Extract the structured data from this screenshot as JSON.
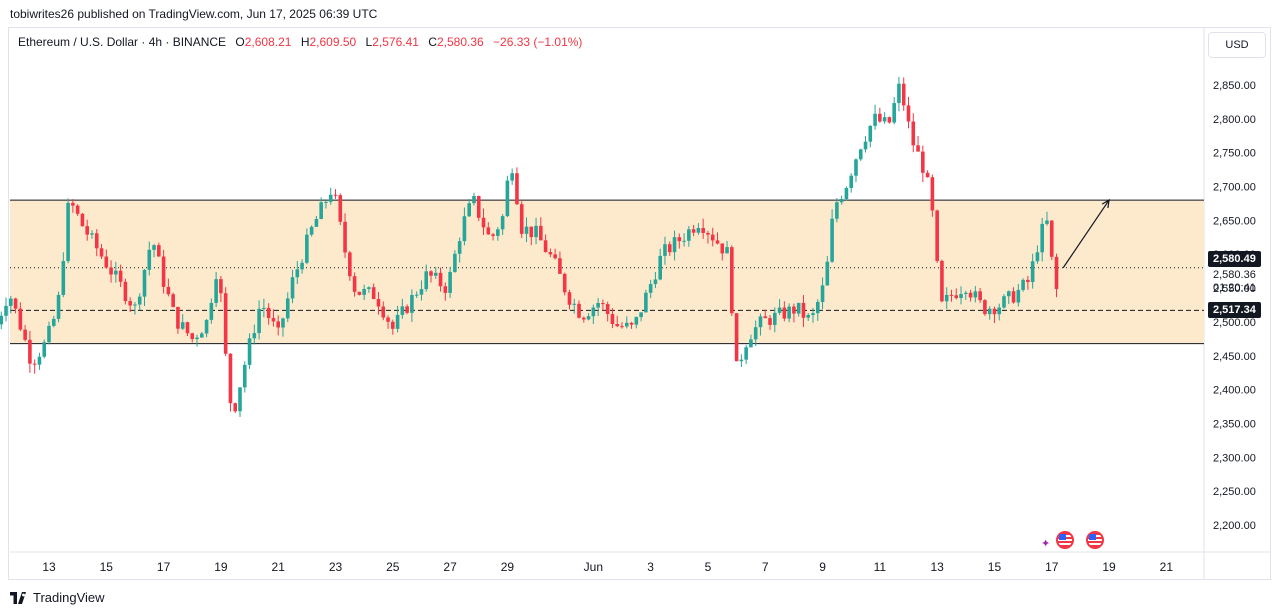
{
  "header": {
    "published_text": "tobiwrites26 published on TradingView.com, Jun 17, 2025 06:39 UTC"
  },
  "legend": {
    "symbol": "Ethereum / U.S. Dollar · 4h · BINANCE",
    "open_label": "O",
    "open": "2,608.21",
    "high_label": "H",
    "high": "2,609.50",
    "low_label": "L",
    "low": "2,576.41",
    "close_label": "C",
    "close": "2,580.36",
    "change": "−26.33 (−1.01%)"
  },
  "currency_button": "USD",
  "price_scale": {
    "current_price_tag": "2,580.49",
    "last_close": "2,580.36",
    "countdown": "01:20:41",
    "level_tag": "2,517.34"
  },
  "footer": {
    "brand": "TradingView"
  },
  "colors": {
    "up": "#26a69a",
    "down": "#f23645",
    "range_fill": "#fde9cc",
    "line": "#131722"
  },
  "icons": [
    "tradingview-logo-icon",
    "us-flag-icon",
    "star-icon"
  ],
  "chart_data": {
    "type": "candlestick",
    "ylim": [
      2180,
      2890
    ],
    "y_ticks": [
      "2,200.00",
      "2,250.00",
      "2,300.00",
      "2,350.00",
      "2,400.00",
      "2,450.00",
      "2,500.00",
      "2,550.00",
      "2,600.00",
      "2,650.00",
      "2,700.00",
      "2,750.00",
      "2,800.00",
      "2,850.00"
    ],
    "y_tick_values": [
      2200,
      2250,
      2300,
      2350,
      2400,
      2450,
      2500,
      2550,
      2600,
      2650,
      2700,
      2750,
      2800,
      2850
    ],
    "x_ticks": [
      "13",
      "15",
      "17",
      "19",
      "21",
      "23",
      "25",
      "27",
      "29",
      "Jun",
      "3",
      "5",
      "7",
      "9",
      "11",
      "13",
      "15",
      "17",
      "19",
      "21"
    ],
    "x_tick_days": [
      13,
      15,
      17,
      19,
      21,
      23,
      25,
      27,
      29,
      32,
      34,
      36,
      38,
      40,
      42,
      44,
      46,
      48,
      50,
      52
    ],
    "annotations": {
      "range_top": 2680,
      "range_bottom": 2468,
      "dotted_level": 2580,
      "dashed_level": 2517,
      "arrow": {
        "from_day": 48.4,
        "from_price": 2580,
        "to_day": 50.0,
        "to_price": 2680
      }
    },
    "candle_close_path": [
      {
        "day": 11.0,
        "price": 2478
      },
      {
        "day": 11.6,
        "price": 2545
      },
      {
        "day": 12.0,
        "price": 2495
      },
      {
        "day": 12.4,
        "price": 2440
      },
      {
        "day": 12.9,
        "price": 2470
      },
      {
        "day": 13.3,
        "price": 2520
      },
      {
        "day": 13.7,
        "price": 2680
      },
      {
        "day": 14.2,
        "price": 2640
      },
      {
        "day": 14.8,
        "price": 2600
      },
      {
        "day": 15.4,
        "price": 2560
      },
      {
        "day": 16.0,
        "price": 2520
      },
      {
        "day": 16.6,
        "price": 2625
      },
      {
        "day": 17.0,
        "price": 2560
      },
      {
        "day": 17.4,
        "price": 2505
      },
      {
        "day": 18.0,
        "price": 2475
      },
      {
        "day": 18.5,
        "price": 2500
      },
      {
        "day": 18.9,
        "price": 2590
      },
      {
        "day": 19.2,
        "price": 2430
      },
      {
        "day": 19.4,
        "price": 2360
      },
      {
        "day": 19.9,
        "price": 2450
      },
      {
        "day": 20.4,
        "price": 2530
      },
      {
        "day": 21.0,
        "price": 2480
      },
      {
        "day": 21.5,
        "price": 2560
      },
      {
        "day": 22.2,
        "price": 2640
      },
      {
        "day": 22.9,
        "price": 2700
      },
      {
        "day": 23.3,
        "price": 2610
      },
      {
        "day": 23.7,
        "price": 2545
      },
      {
        "day": 24.4,
        "price": 2540
      },
      {
        "day": 25.0,
        "price": 2490
      },
      {
        "day": 25.6,
        "price": 2530
      },
      {
        "day": 26.2,
        "price": 2570
      },
      {
        "day": 26.9,
        "price": 2550
      },
      {
        "day": 27.4,
        "price": 2640
      },
      {
        "day": 27.8,
        "price": 2680
      },
      {
        "day": 28.4,
        "price": 2620
      },
      {
        "day": 28.9,
        "price": 2660
      },
      {
        "day": 29.1,
        "price": 2750
      },
      {
        "day": 29.5,
        "price": 2640
      },
      {
        "day": 30.0,
        "price": 2630
      },
      {
        "day": 30.6,
        "price": 2590
      },
      {
        "day": 31.1,
        "price": 2540
      },
      {
        "day": 31.6,
        "price": 2510
      },
      {
        "day": 32.2,
        "price": 2530
      },
      {
        "day": 32.8,
        "price": 2495
      },
      {
        "day": 33.4,
        "price": 2490
      },
      {
        "day": 33.9,
        "price": 2545
      },
      {
        "day": 34.4,
        "price": 2600
      },
      {
        "day": 35.1,
        "price": 2625
      },
      {
        "day": 35.7,
        "price": 2650
      },
      {
        "day": 36.3,
        "price": 2620
      },
      {
        "day": 36.7,
        "price": 2600
      },
      {
        "day": 37.0,
        "price": 2430
      },
      {
        "day": 37.4,
        "price": 2480
      },
      {
        "day": 37.9,
        "price": 2500
      },
      {
        "day": 38.5,
        "price": 2510
      },
      {
        "day": 39.1,
        "price": 2520
      },
      {
        "day": 39.6,
        "price": 2500
      },
      {
        "day": 40.1,
        "price": 2560
      },
      {
        "day": 40.4,
        "price": 2670
      },
      {
        "day": 40.8,
        "price": 2700
      },
      {
        "day": 41.3,
        "price": 2760
      },
      {
        "day": 41.8,
        "price": 2800
      },
      {
        "day": 42.3,
        "price": 2790
      },
      {
        "day": 42.7,
        "price": 2850
      },
      {
        "day": 43.1,
        "price": 2770
      },
      {
        "day": 43.6,
        "price": 2720
      },
      {
        "day": 43.9,
        "price": 2640
      },
      {
        "day": 44.1,
        "price": 2520
      },
      {
        "day": 44.5,
        "price": 2540
      },
      {
        "day": 45.0,
        "price": 2555
      },
      {
        "day": 45.6,
        "price": 2520
      },
      {
        "day": 46.2,
        "price": 2525
      },
      {
        "day": 46.7,
        "price": 2540
      },
      {
        "day": 47.2,
        "price": 2560
      },
      {
        "day": 47.6,
        "price": 2630
      },
      {
        "day": 47.9,
        "price": 2650
      },
      {
        "day": 48.1,
        "price": 2530
      },
      {
        "day": 48.3,
        "price": 2580
      }
    ]
  }
}
